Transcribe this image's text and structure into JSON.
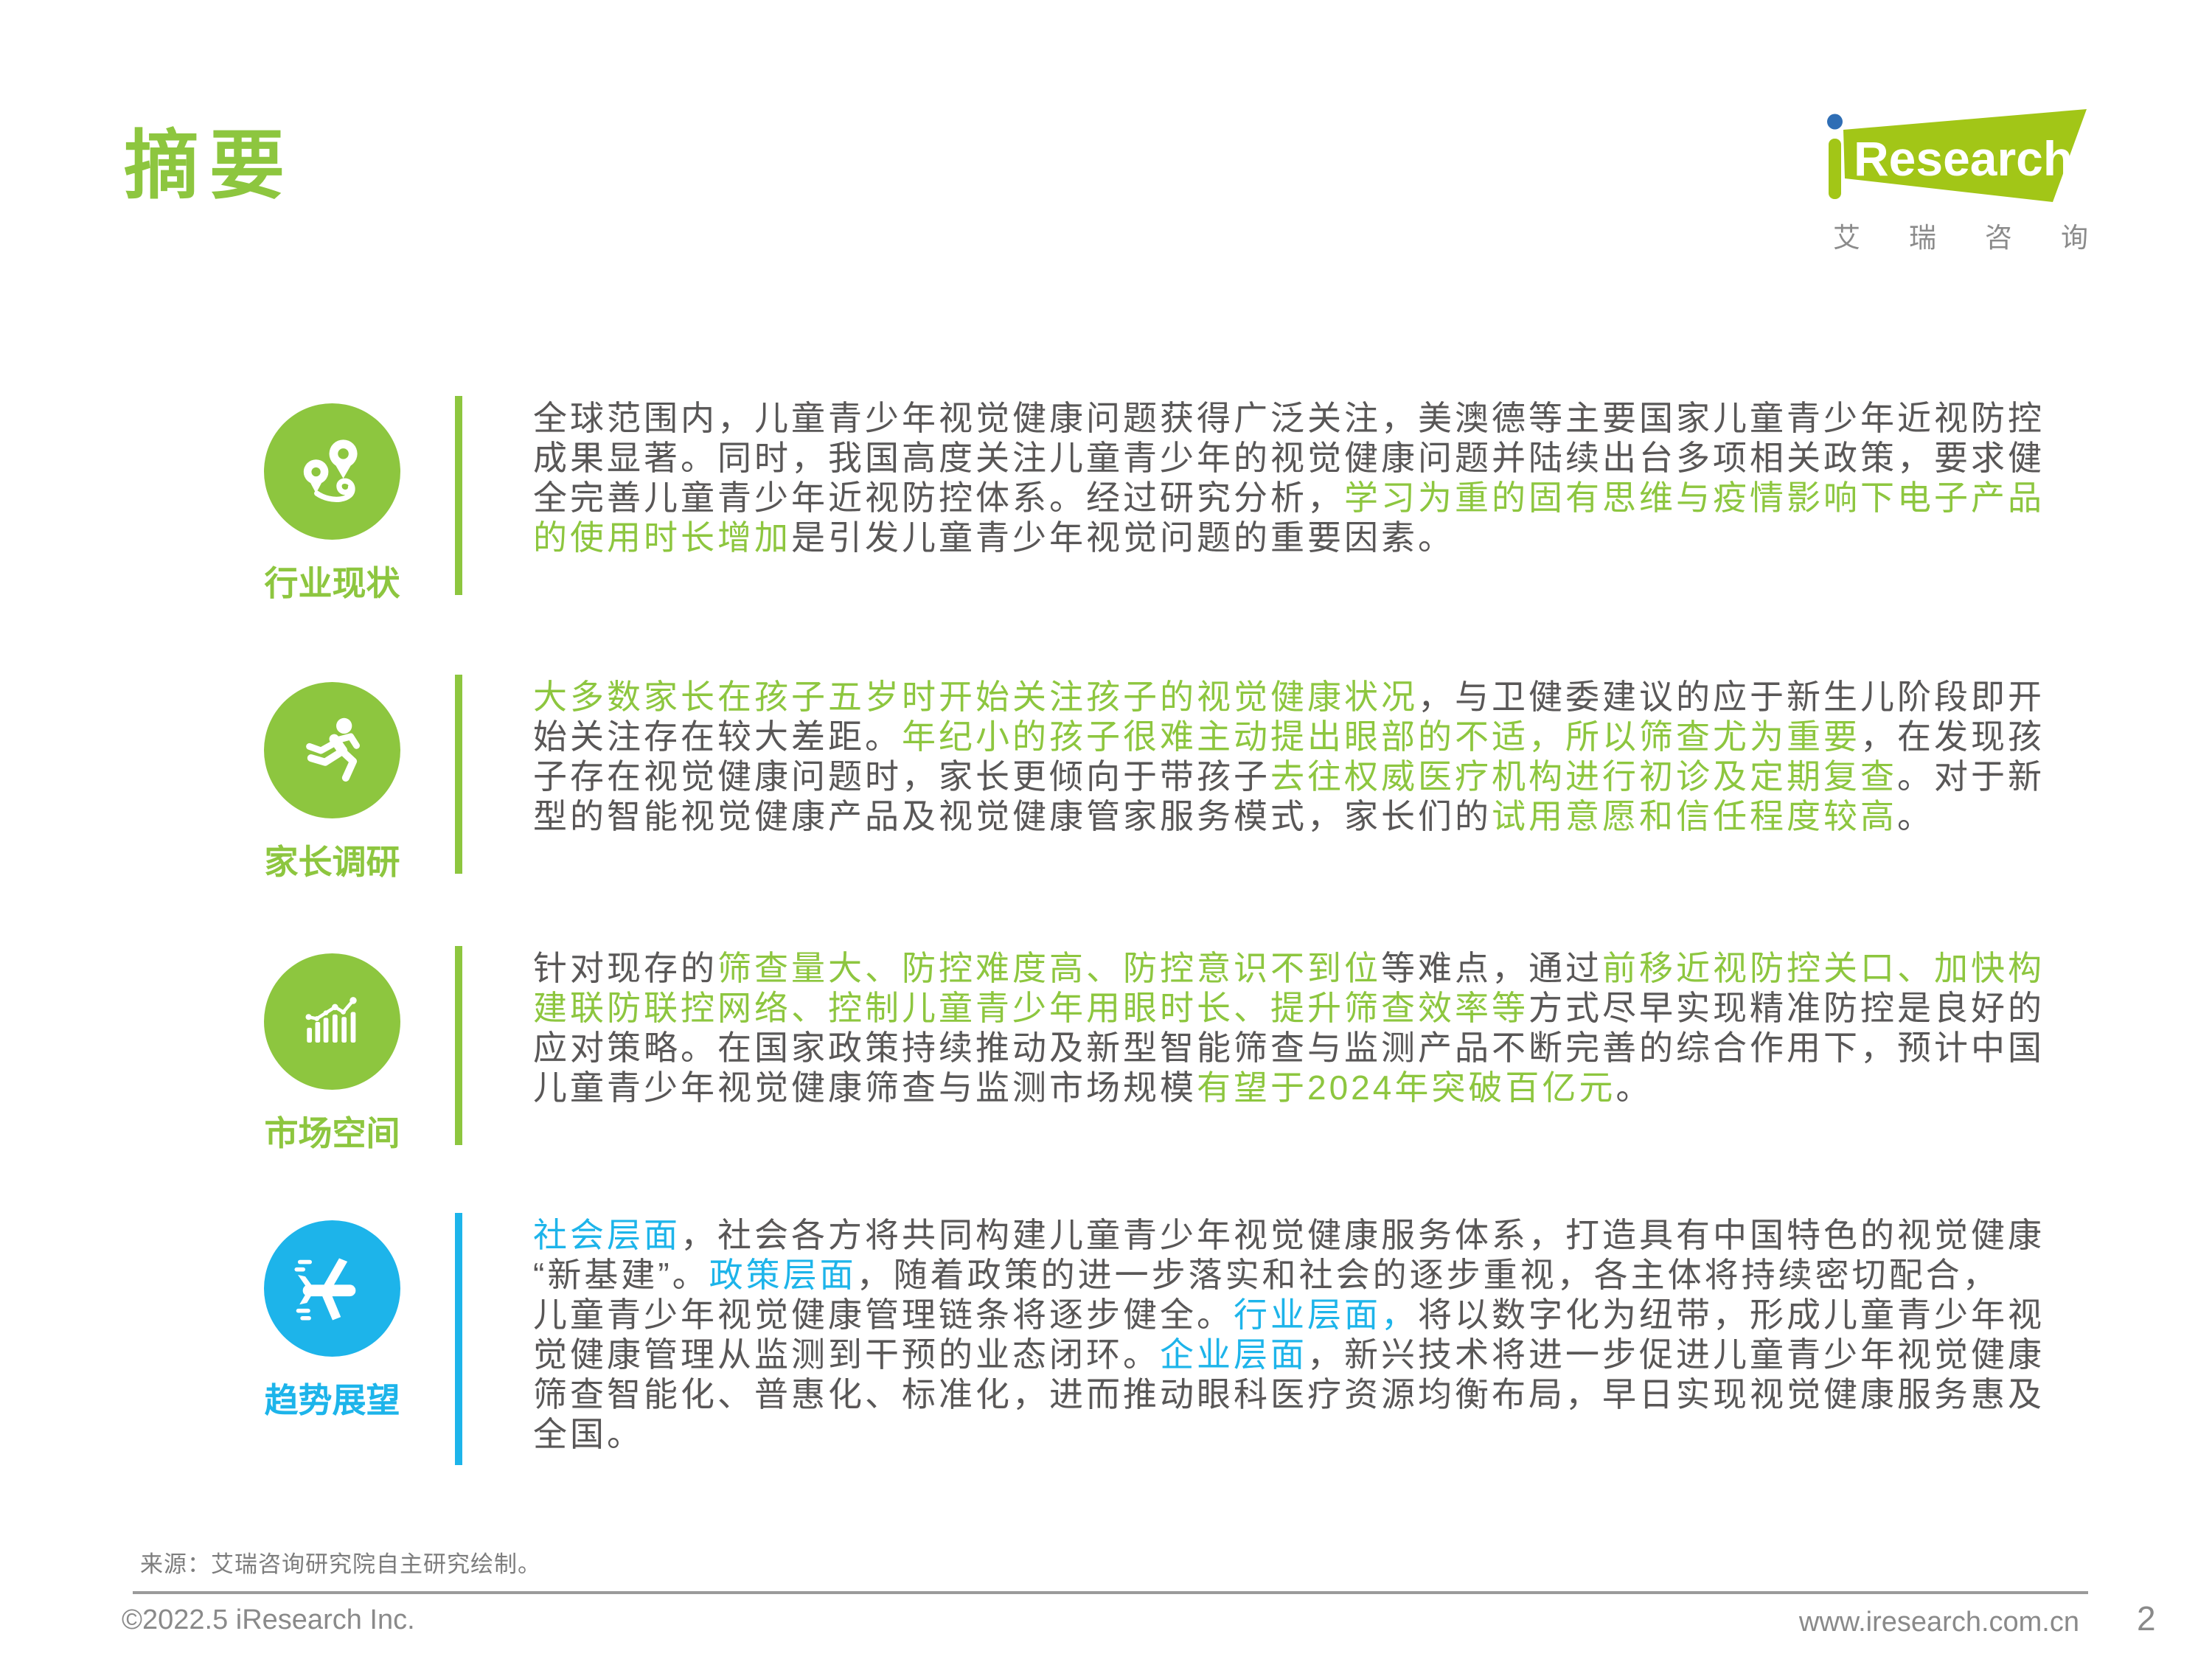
{
  "header": {
    "title": "摘要"
  },
  "logo": {
    "brand": "Research",
    "brand_i": "i",
    "subtext_chars": [
      "艾",
      "瑞",
      "咨",
      "询"
    ],
    "subtext": "艾瑞咨询"
  },
  "colors": {
    "green": "#8dc63f",
    "logo_green": "#a2c617",
    "logo_dot_blue": "#2f6eb5",
    "blue": "#1db4ea",
    "body_text": "#595757",
    "footer_gray": "#8a8a8a"
  },
  "sections": [
    {
      "label": "行业现状",
      "icon": "route-pins-icon",
      "accent": "green",
      "segments": [
        {
          "t": "全球范围内，儿童青少年视觉健康问题获得广泛关注，美澳德等主要国家儿童青少年近视防控\n成果显著。同时，我国高度关注儿童青少年的视觉健康问题并陆续出台多项相关政策，要求健\n全完善儿童青少年近视防控体系。经过研究分析，",
          "hl": false
        },
        {
          "t": "学习为重的固有思维与疫情影响下电子产品\n的使用时长增加",
          "hl": true
        },
        {
          "t": "是引发儿童青少年视觉问题的重要因素。",
          "hl": false
        }
      ]
    },
    {
      "label": "家长调研",
      "icon": "runner-icon",
      "accent": "green",
      "segments": [
        {
          "t": "大多数家长在孩子五岁时开始关注孩子的视觉健康状况",
          "hl": true
        },
        {
          "t": "，与卫健委建议的应于新生儿阶段即开\n始关注存在较大差距。",
          "hl": false
        },
        {
          "t": "年纪小的孩子很难主动提出眼部的不适，所以筛查尤为重要",
          "hl": true
        },
        {
          "t": "，在发现孩\n子存在视觉健康问题时，家长更倾向于带孩子",
          "hl": false
        },
        {
          "t": "去往权威医疗机构进行初诊及定期复查",
          "hl": true
        },
        {
          "t": "。对于新\n型的智能视觉健康产品及视觉健康管家服务模式，家长们的",
          "hl": false
        },
        {
          "t": "试用意愿和信任程度较高",
          "hl": true
        },
        {
          "t": "。",
          "hl": false
        }
      ]
    },
    {
      "label": "市场空间",
      "icon": "bar-chart-icon",
      "accent": "green",
      "segments": [
        {
          "t": "针对现存的",
          "hl": false
        },
        {
          "t": "筛查量大、防控难度高、防控意识不到位",
          "hl": true
        },
        {
          "t": "等难点，通过",
          "hl": false
        },
        {
          "t": "前移近视防控关口、加快构\n建联防联控网络、控制儿童青少年用眼时长、提升筛查效率等",
          "hl": true
        },
        {
          "t": "方式尽早实现精准防控是良好的\n应对策略。在国家政策持续推动及新型智能筛查与监测产品不断完善的综合作用下，预计中国\n儿童青少年视觉健康筛查与监测市场规模",
          "hl": false
        },
        {
          "t": "有望于2024年突破百亿元",
          "hl": true
        },
        {
          "t": "。",
          "hl": false
        }
      ]
    },
    {
      "label": "趋势展望",
      "icon": "airplane-icon",
      "accent": "blue",
      "segments": [
        {
          "t": "社会层面",
          "hl": true
        },
        {
          "t": "，社会各方将共同构建儿童青少年视觉健康服务体系，打造具有中国特色的视觉健康\n“新基建”。",
          "hl": false
        },
        {
          "t": "政策层面",
          "hl": true
        },
        {
          "t": "，随着政策的进一步落实和社会的逐步重视，各主体将持续密切配合，\n儿童青少年视觉健康管理链条将逐步健全。",
          "hl": false
        },
        {
          "t": "行业层面，",
          "hl": true
        },
        {
          "t": "将以数字化为纽带，形成儿童青少年视\n觉健康管理从监测到干预的业态闭环。",
          "hl": false
        },
        {
          "t": "企业层面",
          "hl": true
        },
        {
          "t": "，新兴技术将进一步促进儿童青少年视觉健康\n筛查智能化、普惠化、标准化，进而推动眼科医疗资源均衡布局，早日实现视觉健康服务惠及\n全国。",
          "hl": false
        }
      ]
    }
  ],
  "footer": {
    "source": "来源：艾瑞咨询研究院自主研究绘制。",
    "copyright": "©2022.5 iResearch Inc.",
    "website": "www.iresearch.com.cn",
    "page_number": "2"
  }
}
